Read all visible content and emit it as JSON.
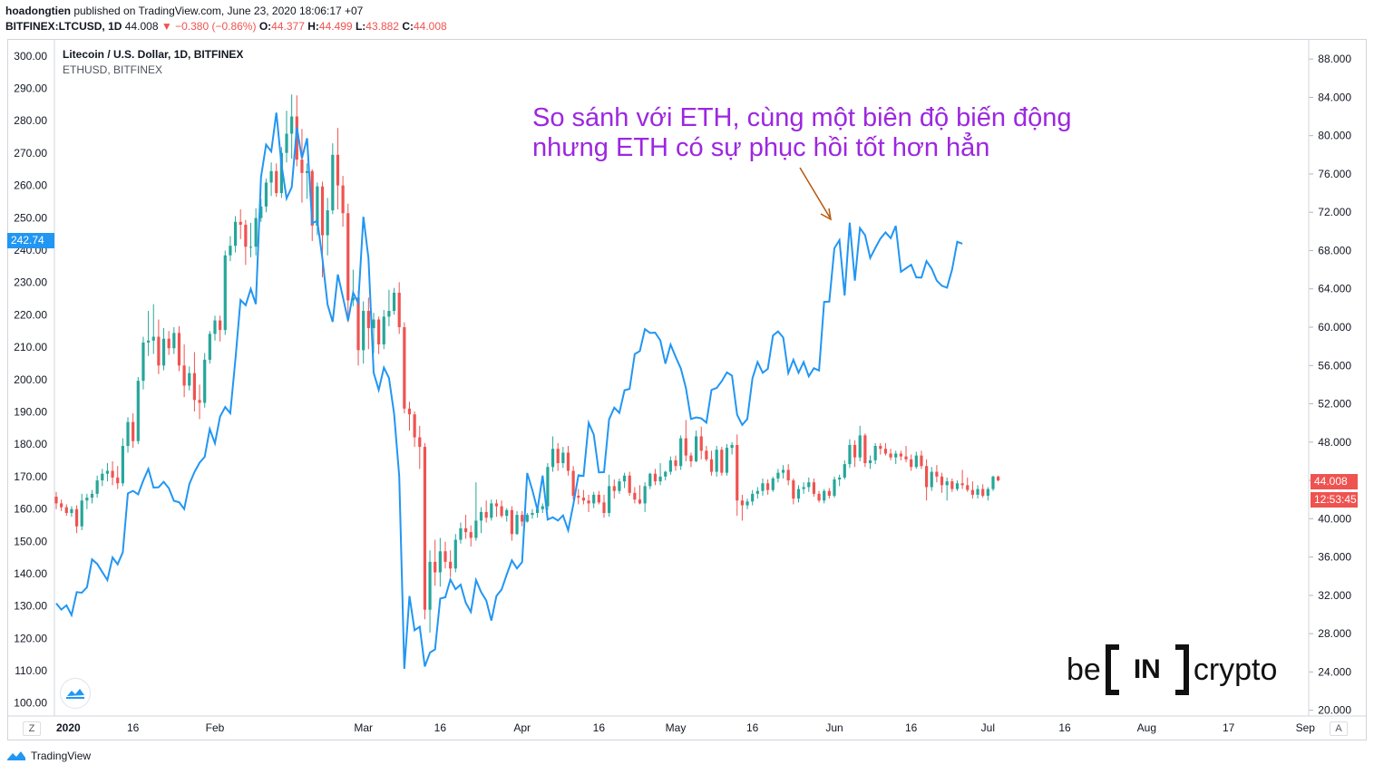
{
  "header": {
    "user": "hoadongtien",
    "published": " published on TradingView.com, June 23, 2020 18:06:17 +07",
    "symbol": "BITFINEX:LTCUSD, 1D",
    "last": "44.008",
    "arrow": "▼",
    "change": "−0.380 (−0.86%)",
    "o_label": "O:",
    "o_value": "44.377",
    "h_label": "H:",
    "h_value": "44.499",
    "l_label": "L:",
    "l_value": "43.882",
    "c_label": "C:",
    "c_value": "44.008"
  },
  "legend": {
    "main": "Litecoin / U.S. Dollar, 1D, BITFINEX",
    "sub": "ETHUSD, BITFINEX"
  },
  "annotation": {
    "line1": "So sánh với ETH, cùng một biên độ biến động",
    "line2": "nhưng ETH có sự phục hồi tốt hơn hẳn"
  },
  "badges": {
    "eth_price": "242.74",
    "ltc_price": "44.008",
    "countdown": "12:53:45"
  },
  "buttons": {
    "z": "Z",
    "a": "A"
  },
  "footer": {
    "brand": "TradingView"
  },
  "watermark": {
    "left": "be",
    "mid": "IN",
    "right": "crypto"
  },
  "colors": {
    "eth_line": "#2196f3",
    "up": "#26a69a",
    "down": "#ef5350",
    "annotation": "#9c27e0",
    "arrow": "#b8560a"
  },
  "chart_data": {
    "type": "line",
    "left_axis": {
      "series": "ETHUSD",
      "ticks": [
        "100.00",
        "110.00",
        "120.00",
        "130.00",
        "140.00",
        "150.00",
        "160.00",
        "170.00",
        "180.00",
        "190.00",
        "200.00",
        "210.00",
        "220.00",
        "230.00",
        "240.00",
        "250.00",
        "260.00",
        "270.00",
        "280.00",
        "290.00",
        "300.00"
      ],
      "ylim": [
        96,
        305
      ]
    },
    "right_axis": {
      "series": "LTCUSD",
      "ticks": [
        "20.000",
        "24.000",
        "28.000",
        "32.000",
        "36.000",
        "40.000",
        "44.000",
        "48.000",
        "52.000",
        "56.000",
        "60.000",
        "64.000",
        "68.000",
        "72.000",
        "76.000",
        "80.000",
        "84.000",
        "88.000"
      ],
      "ylim": [
        19.4,
        90
      ]
    },
    "x_ticks": [
      "2020",
      "16",
      "Feb",
      "Mar",
      "16",
      "Apr",
      "16",
      "May",
      "16",
      "Jun",
      "16",
      "Jul",
      "16",
      "Aug",
      "17",
      "Sep"
    ],
    "x_tick_dates": [
      "2020-01-01",
      "2020-01-16",
      "2020-02-01",
      "2020-03-01",
      "2020-03-16",
      "2020-04-01",
      "2020-04-16",
      "2020-05-01",
      "2020-05-16",
      "2020-06-01",
      "2020-06-16",
      "2020-07-01",
      "2020-07-16",
      "2020-08-01",
      "2020-08-17",
      "2020-09-01"
    ],
    "eth_start": "2020-01-01",
    "eth": [
      130.8,
      128.9,
      130.2,
      127.2,
      134.3,
      134.1,
      135.8,
      144.4,
      143.0,
      140.5,
      138.0,
      145.0,
      142.9,
      146.6,
      164.8,
      165.6,
      164.5,
      168.8,
      172.4,
      166.6,
      166.7,
      168.4,
      166.4,
      162.5,
      162.1,
      160.0,
      167.7,
      171.4,
      174.3,
      176.1,
      184.7,
      180.3,
      188.5,
      191.5,
      189.6,
      206.3,
      224.6,
      223.0,
      228.0,
      223.3,
      262.6,
      272.6,
      270.5,
      282.5,
      266.4,
      256.0,
      259.5,
      278.0,
      268.4,
      274.6,
      248.3,
      249.1,
      237.4,
      223.2,
      217.8,
      232.5,
      225.5,
      218.2,
      226.9,
      223.6,
      250.3,
      237.5,
      202.1,
      196.8,
      203.7,
      200.5,
      189.3,
      170.1,
      110.6,
      133.1,
      122.5,
      123.6,
      111.3,
      115.6,
      116.6,
      132.3,
      132.7,
      138.2,
      135.2,
      136.6,
      131.0,
      128.2,
      138.0,
      134.3,
      131.7,
      125.5,
      133.1,
      135.1,
      139.7,
      144.1,
      141.6,
      143.6,
      171.1,
      165.8,
      159.7,
      170.3,
      156.7,
      157.4,
      156.4,
      158.0,
      153.4,
      161.3,
      170.4,
      170.2,
      186.6,
      183.0,
      171.3,
      171.4,
      187.7,
      191.3,
      189.7,
      196.7,
      197.1,
      207.9,
      208.8,
      215.6,
      214.4,
      214.5,
      212.1,
      204.9,
      210.8,
      207.0,
      203.4,
      197.4,
      187.8,
      188.3,
      188.0,
      186.7,
      196.8,
      197.4,
      199.5,
      202.2,
      201.2,
      189.1,
      186.0,
      187.8,
      200.4,
      205.4,
      202.1,
      203.3,
      213.6,
      214.9,
      213.0,
      202.0,
      206.1,
      202.1,
      205.4,
      201.0,
      203.5,
      202.8,
      224.0,
      224.1,
      240.6,
      243.1,
      226.0,
      248.5,
      230.6,
      246.8,
      244.6,
      237.6,
      240.7,
      243.6,
      245.5,
      243.7,
      247.5,
      233.3,
      234.4,
      235.5,
      231.6,
      231.5,
      236.6,
      234.3,
      230.6,
      229.0,
      228.4,
      234.0,
      242.6,
      242.0
    ],
    "ltc": [
      [
        42.3,
        42.8,
        41.0,
        41.6
      ],
      [
        41.6,
        42.0,
        40.8,
        41.2
      ],
      [
        41.2,
        41.5,
        40.3,
        40.6
      ],
      [
        40.6,
        41.3,
        40.2,
        41.0
      ],
      [
        41.0,
        41.4,
        38.5,
        39.2
      ],
      [
        39.2,
        42.6,
        38.8,
        41.9
      ],
      [
        41.9,
        42.6,
        41.0,
        42.2
      ],
      [
        42.2,
        43.0,
        41.6,
        42.6
      ],
      [
        42.6,
        44.5,
        42.2,
        44.0
      ],
      [
        44.0,
        45.2,
        43.4,
        44.7
      ],
      [
        44.7,
        45.8,
        43.9,
        45.0
      ],
      [
        45.0,
        46.0,
        43.5,
        44.3
      ],
      [
        44.3,
        45.5,
        43.1,
        43.7
      ],
      [
        43.7,
        48.4,
        43.4,
        47.6
      ],
      [
        47.6,
        50.6,
        46.9,
        50.1
      ],
      [
        50.1,
        51.0,
        47.4,
        48.1
      ],
      [
        48.1,
        54.8,
        47.8,
        54.4
      ],
      [
        54.4,
        59.0,
        53.5,
        58.4
      ],
      [
        58.4,
        61.7,
        57.0,
        58.6
      ],
      [
        58.6,
        62.4,
        57.2,
        59.0
      ],
      [
        59.0,
        60.8,
        55.1,
        56.0
      ],
      [
        56.0,
        59.9,
        55.5,
        58.8
      ],
      [
        58.8,
        59.6,
        57.1,
        57.8
      ],
      [
        57.8,
        60.0,
        57.2,
        59.4
      ],
      [
        59.4,
        60.1,
        55.4,
        56.0
      ],
      [
        56.0,
        58.2,
        52.7,
        53.9
      ],
      [
        53.9,
        55.9,
        53.4,
        55.2
      ],
      [
        55.2,
        57.4,
        51.2,
        52.4
      ],
      [
        52.4,
        54.0,
        50.4,
        52.1
      ],
      [
        52.1,
        57.3,
        51.6,
        56.6
      ],
      [
        56.6,
        59.6,
        56.2,
        59.3
      ],
      [
        59.3,
        61.2,
        58.6,
        60.7
      ],
      [
        60.7,
        61.2,
        58.5,
        59.7
      ],
      [
        59.7,
        68.0,
        59.2,
        67.5
      ],
      [
        67.5,
        69.5,
        66.9,
        68.5
      ],
      [
        68.5,
        71.6,
        67.8,
        71.0
      ],
      [
        71.0,
        72.3,
        69.2,
        70.7
      ],
      [
        70.7,
        71.2,
        66.5,
        68.4
      ],
      [
        68.4,
        70.9,
        67.3,
        68.4
      ],
      [
        68.4,
        72.4,
        67.5,
        71.4
      ],
      [
        71.4,
        73.4,
        71.0,
        72.6
      ],
      [
        72.6,
        75.5,
        72.0,
        75.1
      ],
      [
        75.1,
        77.2,
        73.7,
        76.3
      ],
      [
        76.3,
        77.1,
        73.6,
        74.0
      ],
      [
        74.0,
        78.8,
        73.5,
        78.2
      ],
      [
        78.2,
        82.6,
        77.2,
        80.2
      ],
      [
        80.2,
        84.3,
        77.6,
        82.0
      ],
      [
        82.0,
        84.2,
        76.8,
        77.5
      ],
      [
        77.5,
        80.7,
        73.0,
        76.1
      ],
      [
        76.1,
        77.1,
        73.4,
        76.3
      ],
      [
        76.3,
        76.5,
        69.0,
        70.6
      ],
      [
        70.6,
        75.1,
        69.6,
        74.7
      ],
      [
        74.7,
        75.2,
        65.2,
        69.6
      ],
      [
        69.6,
        73.5,
        67.5,
        72.2
      ],
      [
        72.2,
        79.2,
        71.8,
        78.0
      ],
      [
        78.0,
        80.8,
        72.3,
        74.8
      ],
      [
        74.8,
        75.8,
        70.5,
        71.9
      ],
      [
        71.9,
        72.9,
        60.5,
        62.8
      ],
      [
        62.8,
        66.0,
        62.2,
        63.1
      ],
      [
        63.1,
        63.8,
        56.0,
        57.6
      ],
      [
        57.6,
        62.7,
        56.2,
        61.7
      ],
      [
        61.7,
        63.1,
        57.7,
        59.9
      ],
      [
        59.9,
        61.5,
        57.3,
        60.8
      ],
      [
        60.8,
        61.1,
        57.2,
        58.2
      ],
      [
        58.2,
        61.8,
        57.7,
        61.1
      ],
      [
        61.1,
        63.9,
        60.1,
        61.7
      ],
      [
        61.7,
        64.1,
        61.3,
        63.6
      ],
      [
        63.6,
        64.7,
        59.3,
        60.0
      ],
      [
        60.0,
        60.5,
        51.0,
        51.5
      ],
      [
        51.5,
        52.2,
        49.2,
        50.9
      ],
      [
        50.9,
        51.2,
        47.5,
        48.5
      ],
      [
        48.5,
        49.7,
        45.2,
        47.5
      ],
      [
        47.5,
        47.9,
        29.5,
        30.5
      ],
      [
        30.5,
        36.7,
        28.1,
        35.5
      ],
      [
        35.5,
        37.8,
        33.0,
        34.4
      ],
      [
        34.4,
        38.0,
        32.9,
        36.6
      ],
      [
        36.6,
        37.6,
        34.8,
        35.5
      ],
      [
        35.5,
        36.7,
        33.9,
        34.8
      ],
      [
        34.8,
        38.4,
        34.4,
        37.8
      ],
      [
        37.8,
        39.6,
        37.4,
        39.0
      ],
      [
        39.0,
        40.4,
        37.9,
        38.6
      ],
      [
        38.6,
        39.3,
        37.1,
        38.0
      ],
      [
        38.0,
        43.8,
        37.7,
        39.8
      ],
      [
        39.8,
        41.2,
        38.5,
        40.7
      ],
      [
        40.7,
        41.9,
        39.6,
        40.1
      ],
      [
        40.1,
        42.0,
        39.8,
        41.6
      ],
      [
        41.6,
        42.0,
        40.2,
        41.3
      ],
      [
        41.3,
        41.9,
        40.1,
        40.3
      ],
      [
        40.3,
        41.1,
        39.7,
        40.9
      ],
      [
        40.9,
        41.3,
        37.7,
        38.4
      ],
      [
        38.4,
        40.8,
        38.3,
        40.4
      ],
      [
        40.4,
        40.8,
        39.2,
        39.7
      ],
      [
        39.7,
        40.6,
        39.6,
        40.4
      ],
      [
        40.4,
        41.0,
        40.0,
        40.6
      ],
      [
        40.6,
        41.2,
        40.1,
        41.0
      ],
      [
        41.0,
        41.6,
        40.6,
        41.3
      ],
      [
        41.3,
        45.8,
        40.9,
        45.4
      ],
      [
        45.4,
        48.6,
        44.9,
        47.3
      ],
      [
        47.3,
        47.9,
        45.0,
        45.8
      ],
      [
        45.8,
        47.5,
        45.3,
        46.9
      ],
      [
        46.9,
        47.6,
        44.5,
        45.0
      ],
      [
        45.0,
        45.5,
        42.0,
        42.4
      ],
      [
        42.4,
        43.1,
        41.5,
        42.2
      ],
      [
        42.2,
        43.0,
        41.5,
        41.9
      ],
      [
        41.9,
        42.5,
        40.7,
        41.6
      ],
      [
        41.6,
        42.8,
        41.1,
        42.5
      ],
      [
        42.5,
        42.9,
        41.5,
        41.7
      ],
      [
        41.7,
        42.5,
        40.1,
        40.6
      ],
      [
        40.6,
        44.6,
        40.2,
        43.4
      ],
      [
        43.4,
        44.1,
        42.1,
        42.9
      ],
      [
        42.9,
        44.2,
        42.6,
        43.9
      ],
      [
        43.9,
        44.8,
        43.2,
        44.5
      ],
      [
        44.5,
        44.9,
        42.4,
        42.7
      ],
      [
        42.7,
        43.3,
        41.6,
        42.0
      ],
      [
        42.0,
        43.5,
        41.5,
        41.6
      ],
      [
        41.6,
        43.8,
        40.7,
        43.4
      ],
      [
        43.4,
        44.8,
        43.1,
        44.7
      ],
      [
        44.7,
        45.2,
        43.5,
        43.9
      ],
      [
        43.9,
        45.8,
        43.5,
        44.4
      ],
      [
        44.4,
        45.0,
        44.0,
        44.9
      ],
      [
        44.9,
        46.5,
        44.6,
        46.1
      ],
      [
        46.1,
        46.6,
        45.0,
        45.5
      ],
      [
        45.5,
        48.7,
        45.1,
        48.4
      ],
      [
        48.4,
        50.3,
        46.0,
        46.6
      ],
      [
        46.6,
        46.9,
        45.4,
        46.0
      ],
      [
        46.0,
        49.2,
        45.9,
        48.6
      ],
      [
        48.6,
        49.6,
        46.2,
        47.1
      ],
      [
        47.1,
        47.6,
        46.0,
        46.2
      ],
      [
        46.2,
        47.1,
        44.5,
        44.9
      ],
      [
        44.9,
        47.6,
        44.4,
        47.2
      ],
      [
        47.2,
        47.5,
        44.5,
        44.8
      ],
      [
        44.8,
        47.8,
        44.5,
        47.4
      ],
      [
        47.4,
        48.0,
        46.7,
        47.7
      ],
      [
        47.7,
        48.8,
        40.3,
        41.9
      ],
      [
        41.9,
        42.5,
        39.8,
        41.4
      ],
      [
        41.4,
        42.1,
        41.0,
        41.8
      ],
      [
        41.8,
        43.0,
        41.4,
        42.6
      ],
      [
        42.6,
        43.3,
        42.1,
        42.9
      ],
      [
        42.9,
        44.2,
        42.4,
        43.7
      ],
      [
        43.7,
        44.1,
        42.5,
        43.0
      ],
      [
        43.0,
        44.4,
        42.8,
        44.2
      ],
      [
        44.2,
        45.2,
        43.8,
        44.8
      ],
      [
        44.8,
        45.6,
        44.2,
        45.1
      ],
      [
        45.1,
        45.7,
        43.5,
        44.0
      ],
      [
        44.0,
        44.2,
        41.5,
        42.1
      ],
      [
        42.1,
        43.5,
        41.7,
        43.1
      ],
      [
        43.1,
        43.8,
        42.6,
        43.3
      ],
      [
        43.3,
        44.3,
        42.8,
        43.8
      ],
      [
        43.8,
        44.2,
        42.3,
        42.6
      ],
      [
        42.6,
        42.9,
        41.7,
        41.9
      ],
      [
        41.9,
        43.1,
        41.6,
        42.9
      ],
      [
        42.9,
        43.2,
        42.1,
        42.4
      ],
      [
        42.4,
        44.4,
        42.2,
        44.1
      ],
      [
        44.1,
        44.6,
        43.4,
        44.3
      ],
      [
        44.3,
        46.1,
        44.1,
        45.7
      ],
      [
        45.7,
        48.3,
        45.3,
        47.7
      ],
      [
        47.7,
        48.2,
        45.4,
        46.4
      ],
      [
        46.4,
        49.7,
        46.0,
        48.7
      ],
      [
        48.7,
        48.9,
        45.4,
        45.8
      ],
      [
        45.8,
        46.6,
        45.2,
        46.1
      ],
      [
        46.1,
        47.9,
        45.7,
        47.6
      ],
      [
        47.6,
        47.9,
        46.7,
        47.3
      ],
      [
        47.3,
        47.9,
        46.6,
        46.8
      ],
      [
        46.8,
        47.3,
        46.1,
        46.4
      ],
      [
        46.4,
        47.1,
        45.7,
        46.8
      ],
      [
        46.8,
        47.1,
        46.1,
        46.5
      ],
      [
        46.5,
        47.6,
        45.9,
        46.2
      ],
      [
        46.2,
        46.7,
        45.0,
        45.4
      ],
      [
        45.4,
        47.0,
        45.2,
        46.6
      ],
      [
        46.6,
        47.1,
        45.2,
        45.5
      ],
      [
        45.5,
        46.2,
        41.9,
        43.3
      ],
      [
        43.3,
        45.4,
        42.9,
        44.9
      ],
      [
        44.9,
        45.6,
        43.8,
        44.4
      ],
      [
        44.4,
        44.8,
        42.7,
        43.5
      ],
      [
        43.5,
        44.3,
        41.9,
        43.9
      ],
      [
        43.9,
        44.2,
        42.8,
        43.1
      ],
      [
        43.1,
        44.0,
        42.9,
        43.7
      ],
      [
        43.7,
        45.1,
        43.1,
        43.5
      ],
      [
        43.5,
        44.3,
        42.8,
        43.0
      ],
      [
        43.0,
        43.9,
        42.1,
        42.5
      ],
      [
        42.5,
        43.5,
        42.1,
        43.1
      ],
      [
        43.1,
        43.6,
        42.2,
        42.4
      ],
      [
        42.4,
        43.3,
        41.9,
        43.1
      ],
      [
        43.1,
        44.5,
        42.9,
        44.4
      ],
      [
        44.4,
        44.5,
        43.9,
        44.0
      ]
    ]
  }
}
